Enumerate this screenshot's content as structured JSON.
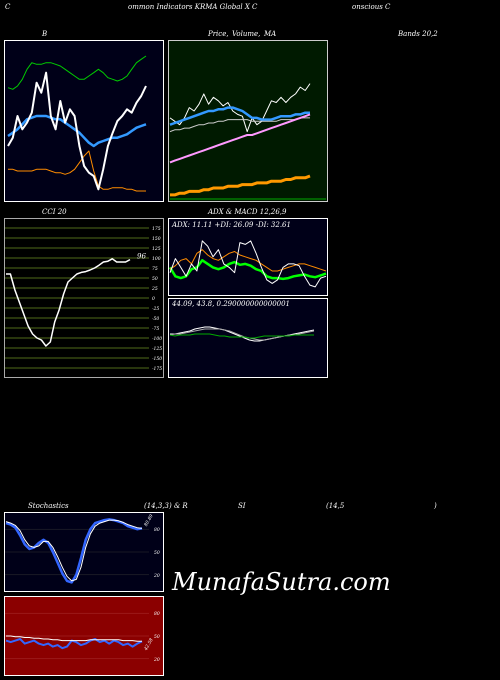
{
  "header": {
    "left": "C",
    "center": "ommon  Indicators KRMA Global  X  C",
    "right": "onscious C"
  },
  "labels": {
    "bollinger": "B",
    "price_ma_a": "Price,",
    "price_ma_b": "Volume,",
    "price_ma_c": "MA",
    "bands": "Bands 20,2",
    "cci": "CCI 20",
    "adx_macd": "ADX  & MACD 12,26,9",
    "stoch": "Stochastics",
    "stoch_params": "(14,3,3) & R",
    "rsi": "SI",
    "rsi_params": "(14,5",
    "rsi_close": ")"
  },
  "watermark": "MunafaSutra.com",
  "chart_data": [
    {
      "type": "line",
      "name": "bollinger-bands",
      "x": [
        1,
        2,
        3,
        4,
        5,
        6,
        7,
        8,
        9,
        10,
        11,
        12,
        13,
        14,
        15,
        16,
        17,
        18,
        19,
        20,
        21,
        22,
        23,
        24,
        25,
        26,
        27,
        28,
        29,
        30
      ],
      "series": [
        {
          "color": "#00cc00",
          "values": [
            65,
            64,
            66,
            70,
            76,
            80,
            79,
            79,
            80,
            80,
            79,
            78,
            76,
            74,
            72,
            70,
            70,
            72,
            74,
            76,
            74,
            71,
            70,
            69,
            70,
            72,
            76,
            80,
            82,
            84
          ]
        },
        {
          "color": "#3399ff",
          "values": [
            36,
            38,
            40,
            43,
            46,
            47,
            48,
            48,
            48,
            47,
            46,
            46,
            44,
            42,
            40,
            38,
            35,
            32,
            30,
            32,
            33,
            34,
            35,
            35,
            36,
            37,
            39,
            41,
            42,
            43
          ]
        },
        {
          "color": "#ff8c00",
          "values": [
            16,
            16,
            15,
            15,
            15,
            15,
            16,
            16,
            16,
            15,
            14,
            14,
            13,
            14,
            16,
            20,
            24,
            27,
            15,
            6,
            4,
            4,
            5,
            5,
            5,
            4,
            4,
            3,
            3,
            3
          ]
        },
        {
          "color": "#ffffff",
          "values": [
            30,
            35,
            48,
            40,
            44,
            50,
            68,
            62,
            74,
            48,
            40,
            57,
            44,
            52,
            48,
            30,
            18,
            14,
            12,
            4,
            16,
            30,
            38,
            45,
            48,
            52,
            50,
            56,
            60,
            66
          ]
        }
      ]
    },
    {
      "type": "line",
      "name": "price-ma",
      "x": [
        1,
        2,
        3,
        4,
        5,
        6,
        7,
        8,
        9,
        10,
        11,
        12,
        13,
        14,
        15,
        16,
        17,
        18,
        19,
        20,
        21,
        22,
        23,
        24,
        25,
        26,
        27,
        28,
        29,
        30
      ],
      "series": [
        {
          "color": "#ffffff",
          "values": [
            48,
            46,
            44,
            48,
            54,
            52,
            56,
            62,
            56,
            60,
            58,
            55,
            57,
            52,
            50,
            49,
            40,
            48,
            44,
            46,
            52,
            58,
            57,
            60,
            57,
            60,
            62,
            66,
            64,
            68
          ]
        },
        {
          "color": "#3399ff",
          "values": [
            44,
            45,
            46,
            47,
            48,
            49,
            50,
            51,
            52,
            52,
            53,
            53,
            54,
            54,
            53,
            52,
            50,
            48,
            48,
            47,
            47,
            47,
            48,
            49,
            49,
            49,
            50,
            50,
            51,
            51
          ]
        },
        {
          "color": "#cccccc",
          "values": [
            40,
            41,
            41,
            42,
            42,
            43,
            44,
            44,
            45,
            45,
            46,
            46,
            47,
            47,
            47,
            47,
            47,
            46,
            46,
            46,
            46,
            46,
            46,
            47,
            47,
            47,
            47,
            48,
            48,
            48
          ]
        },
        {
          "color": "#ff99ff",
          "values": [
            22,
            23,
            24,
            25,
            26,
            27,
            28,
            29,
            30,
            31,
            32,
            33,
            34,
            35,
            36,
            37,
            38,
            38,
            39,
            40,
            41,
            42,
            43,
            44,
            45,
            46,
            47,
            48,
            49,
            50
          ]
        },
        {
          "color": "#ff9900",
          "values": [
            3,
            3,
            4,
            4,
            5,
            5,
            5,
            6,
            6,
            7,
            7,
            7,
            8,
            8,
            8,
            9,
            9,
            9,
            10,
            10,
            10,
            11,
            11,
            11,
            12,
            12,
            13,
            13,
            13,
            14
          ]
        }
      ]
    },
    {
      "type": "line",
      "name": "cci",
      "ticks": [
        175,
        150,
        125,
        100,
        75,
        50,
        25,
        0,
        -25,
        -50,
        -75,
        -100,
        -125,
        -150,
        -175
      ],
      "last_label": "96",
      "x": [
        1,
        2,
        3,
        4,
        5,
        6,
        7,
        8,
        9,
        10,
        11,
        12,
        13,
        14,
        15,
        16,
        17,
        18,
        19,
        20,
        21,
        22,
        23,
        24,
        25,
        26,
        27,
        28,
        29
      ],
      "values": [
        60,
        60,
        20,
        -10,
        -40,
        -70,
        -90,
        -100,
        -105,
        -120,
        -110,
        -60,
        -30,
        10,
        40,
        50,
        60,
        64,
        66,
        70,
        75,
        82,
        90,
        92,
        98,
        90,
        90,
        90,
        96
      ]
    },
    {
      "type": "line",
      "name": "adx",
      "title": "ADX: 11.11  +DI: 26.09  -DI: 32.61",
      "x": [
        1,
        2,
        3,
        4,
        5,
        6,
        7,
        8,
        9,
        10,
        11,
        12,
        13,
        14,
        15,
        16,
        17,
        18,
        19,
        20,
        21,
        22,
        23,
        24,
        25,
        26,
        27,
        28,
        29,
        30
      ],
      "series": [
        {
          "color": "#00ff00",
          "values": [
            40,
            30,
            28,
            30,
            38,
            40,
            48,
            44,
            40,
            38,
            40,
            44,
            46,
            43,
            44,
            42,
            38,
            36,
            30,
            28,
            28,
            27,
            28,
            30,
            31,
            32,
            30,
            29,
            31,
            33
          ]
        },
        {
          "color": "#ff8c00",
          "values": [
            38,
            42,
            48,
            50,
            44,
            56,
            60,
            54,
            50,
            48,
            52,
            56,
            58,
            54,
            52,
            50,
            48,
            44,
            40,
            36,
            36,
            38,
            40,
            42,
            44,
            44,
            42,
            40,
            38,
            36
          ]
        },
        {
          "color": "#ffffff",
          "values": [
            34,
            50,
            40,
            30,
            44,
            36,
            70,
            64,
            52,
            60,
            44,
            40,
            34,
            68,
            66,
            70,
            56,
            40,
            26,
            22,
            26,
            40,
            44,
            44,
            42,
            30,
            20,
            18,
            28,
            30
          ]
        }
      ]
    },
    {
      "type": "line",
      "name": "macd",
      "title": "44.09,  43.8,  0.290000000000001",
      "x": [
        1,
        2,
        3,
        4,
        5,
        6,
        7,
        8,
        9,
        10,
        11,
        12,
        13,
        14,
        15,
        16,
        17,
        18,
        19,
        20,
        21,
        22,
        23,
        24,
        25,
        26,
        27,
        28,
        29,
        30
      ],
      "series": [
        {
          "color": "#ffffff",
          "values": [
            2,
            2,
            3,
            4,
            5,
            7,
            8,
            9,
            9,
            8,
            7,
            6,
            4,
            2,
            0,
            -2,
            -4,
            -5,
            -5,
            -4,
            -3,
            -2,
            -1,
            0,
            1,
            2,
            3,
            4,
            5,
            6
          ]
        },
        {
          "color": "#aaaaaa",
          "values": [
            1,
            2,
            2,
            3,
            4,
            5,
            6,
            7,
            7,
            7,
            7,
            6,
            5,
            3,
            1,
            -1,
            -2,
            -3,
            -4,
            -4,
            -3,
            -2,
            -1,
            0,
            1,
            1,
            2,
            3,
            4,
            5
          ]
        },
        {
          "color": "#00aa00",
          "values": [
            1,
            0,
            1,
            1,
            1,
            2,
            2,
            2,
            2,
            1,
            0,
            0,
            -1,
            -1,
            -1,
            -1,
            -2,
            -2,
            -1,
            0,
            0,
            0,
            0,
            0,
            0,
            1,
            1,
            1,
            1,
            1
          ]
        }
      ]
    },
    {
      "type": "line",
      "name": "stochastics",
      "ticks": [
        80,
        50,
        20
      ],
      "last_label": "80.89",
      "x": [
        1,
        2,
        3,
        4,
        5,
        6,
        7,
        8,
        9,
        10,
        11,
        12,
        13,
        14,
        15,
        16,
        17,
        18,
        19,
        20,
        21,
        22,
        23,
        24,
        25,
        26,
        27,
        28,
        29,
        30
      ],
      "series": [
        {
          "color": "#3366ff",
          "values": [
            88,
            86,
            82,
            72,
            60,
            54,
            56,
            62,
            66,
            62,
            50,
            36,
            22,
            12,
            10,
            20,
            42,
            66,
            80,
            88,
            90,
            92,
            93,
            92,
            90,
            88,
            84,
            82,
            80,
            81
          ]
        },
        {
          "color": "#ffffff",
          "values": [
            90,
            88,
            85,
            78,
            66,
            58,
            56,
            58,
            64,
            64,
            56,
            44,
            30,
            18,
            12,
            14,
            30,
            56,
            74,
            84,
            88,
            90,
            92,
            92,
            91,
            89,
            86,
            84,
            82,
            81
          ]
        }
      ]
    },
    {
      "type": "line",
      "name": "rsi",
      "ticks": [
        80,
        50,
        20
      ],
      "last_label": "42.58",
      "x": [
        1,
        2,
        3,
        4,
        5,
        6,
        7,
        8,
        9,
        10,
        11,
        12,
        13,
        14,
        15,
        16,
        17,
        18,
        19,
        20,
        21,
        22,
        23,
        24,
        25,
        26,
        27,
        28,
        29,
        30
      ],
      "series": [
        {
          "color": "#3366ff",
          "values": [
            44,
            42,
            44,
            46,
            40,
            42,
            44,
            40,
            38,
            40,
            36,
            38,
            34,
            36,
            44,
            42,
            38,
            40,
            44,
            46,
            42,
            44,
            40,
            44,
            42,
            38,
            40,
            36,
            40,
            43
          ]
        },
        {
          "color": "#ffffff",
          "values": [
            50,
            50,
            49,
            49,
            48,
            48,
            47,
            47,
            46,
            46,
            45,
            45,
            44,
            44,
            44,
            44,
            44,
            44,
            45,
            45,
            45,
            45,
            45,
            45,
            45,
            44,
            44,
            44,
            43,
            43
          ]
        }
      ]
    }
  ]
}
